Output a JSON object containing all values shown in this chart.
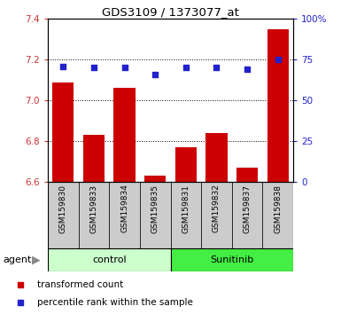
{
  "title": "GDS3109 / 1373077_at",
  "categories": [
    "GSM159830",
    "GSM159833",
    "GSM159834",
    "GSM159835",
    "GSM159831",
    "GSM159832",
    "GSM159837",
    "GSM159838"
  ],
  "bar_values": [
    7.09,
    6.83,
    7.06,
    6.63,
    6.77,
    6.84,
    6.67,
    7.35
  ],
  "percentile_values": [
    71,
    70,
    70,
    66,
    70,
    70,
    69,
    75
  ],
  "ylim_left": [
    6.6,
    7.4
  ],
  "ylim_right": [
    0,
    100
  ],
  "yticks_left": [
    6.6,
    6.8,
    7.0,
    7.2,
    7.4
  ],
  "yticks_right": [
    0,
    25,
    50,
    75,
    100
  ],
  "ytick_labels_right": [
    "0",
    "25",
    "50",
    "75",
    "100%"
  ],
  "bar_color": "#cc0000",
  "dot_color": "#2222cc",
  "bar_width": 0.7,
  "control_color": "#ccffcc",
  "sunitinib_color": "#44ee44",
  "agent_label": "agent",
  "legend_bar_label": "transformed count",
  "legend_dot_label": "percentile rank within the sample",
  "tick_color_left": "#cc3333",
  "tick_color_right": "#2222cc",
  "xlabel_bg_color": "#cccccc",
  "plot_bg": "#ffffff",
  "fig_bg": "#ffffff"
}
